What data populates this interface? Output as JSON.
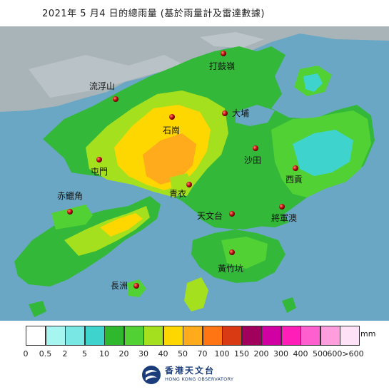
{
  "header": {
    "title": "2021年 5 月4 日的總雨量 (基於雨量計及雷達數據)"
  },
  "map": {
    "stations": [
      {
        "id": "ta-kwu-ling",
        "name": "打鼓嶺"
      },
      {
        "id": "lau-fau-shan",
        "name": "流浮山"
      },
      {
        "id": "shek-kong",
        "name": "石崗"
      },
      {
        "id": "tai-po",
        "name": "大埔"
      },
      {
        "id": "tuen-mun",
        "name": "屯門"
      },
      {
        "id": "sha-tin",
        "name": "沙田"
      },
      {
        "id": "sai-kung",
        "name": "西貢"
      },
      {
        "id": "chek-lap-kok",
        "name": "赤鱲角"
      },
      {
        "id": "tsing-yi",
        "name": "青衣"
      },
      {
        "id": "tsim-sha-tsui",
        "name": "天文台"
      },
      {
        "id": "tseung-kwan-o",
        "name": "將軍澳"
      },
      {
        "id": "wong-chuk-hang",
        "name": "黃竹坑"
      },
      {
        "id": "cheung-chau",
        "name": "長洲"
      }
    ]
  },
  "legend": {
    "unit": "mm",
    "colors": [
      "#ffffff",
      "#a6f5f0",
      "#79e8e4",
      "#3ed3cc",
      "#2eb82e",
      "#52d134",
      "#a5e01e",
      "#ffd700",
      "#ffab1c",
      "#ff7514",
      "#d93a14",
      "#a1005c",
      "#d100a3",
      "#ff1fb8",
      "#ff5fcf",
      "#ff9ddf",
      "#ffe1f7"
    ],
    "tick_labels": [
      "0",
      "0.5",
      "2",
      "5",
      "10",
      "20",
      "30",
      "40",
      "50",
      "70",
      "100",
      "150",
      "200",
      "300",
      "400",
      "500",
      "600>600"
    ]
  },
  "footer": {
    "org_zh": "香港天文台",
    "org_en": "HONG KONG OBSERVATORY"
  }
}
